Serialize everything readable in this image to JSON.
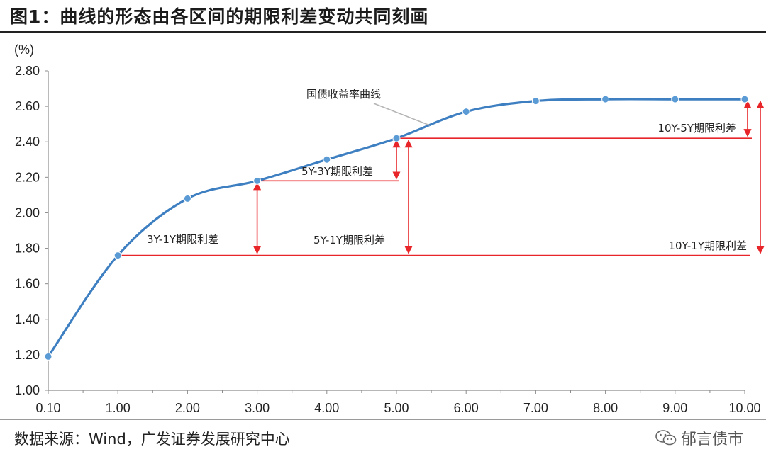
{
  "title": "图1：曲线的形态由各区间的期限利差变动共同刻画",
  "source": "数据来源：Wind，广发证券发展研究中心",
  "watermark": "郁言债市",
  "chart_data": {
    "type": "line",
    "ylabel": "(%)",
    "ylim": [
      1.0,
      2.8
    ],
    "y_ticks": [
      "1.00",
      "1.20",
      "1.40",
      "1.60",
      "1.80",
      "2.00",
      "2.20",
      "2.40",
      "2.60",
      "2.80"
    ],
    "x_ticks": [
      "0.10",
      "1.00",
      "2.00",
      "3.00",
      "4.00",
      "5.00",
      "6.00",
      "7.00",
      "8.00",
      "9.00",
      "10.00"
    ],
    "series": [
      {
        "name": "国债收益率曲线",
        "color": "#3d7fc1",
        "x": [
          0.1,
          1,
          2,
          3,
          4,
          5,
          6,
          7,
          8,
          9,
          10
        ],
        "y": [
          1.19,
          1.76,
          2.08,
          2.18,
          2.3,
          2.42,
          2.57,
          2.63,
          2.64,
          2.64,
          2.64
        ]
      }
    ],
    "spreads": [
      {
        "label": "3Y-1Y期限利差",
        "from_x": 1,
        "to_x": 3
      },
      {
        "label": "5Y-3Y期限利差",
        "from_x": 3,
        "to_x": 5
      },
      {
        "label": "5Y-1Y期限利差",
        "from_x": 1,
        "to_x": 5
      },
      {
        "label": "10Y-5Y期限利差",
        "from_x": 5,
        "to_x": 10
      },
      {
        "label": "10Y-1Y期限利差",
        "from_x": 1,
        "to_x": 10
      }
    ],
    "spread_color": "#e8262a",
    "grid": false
  }
}
